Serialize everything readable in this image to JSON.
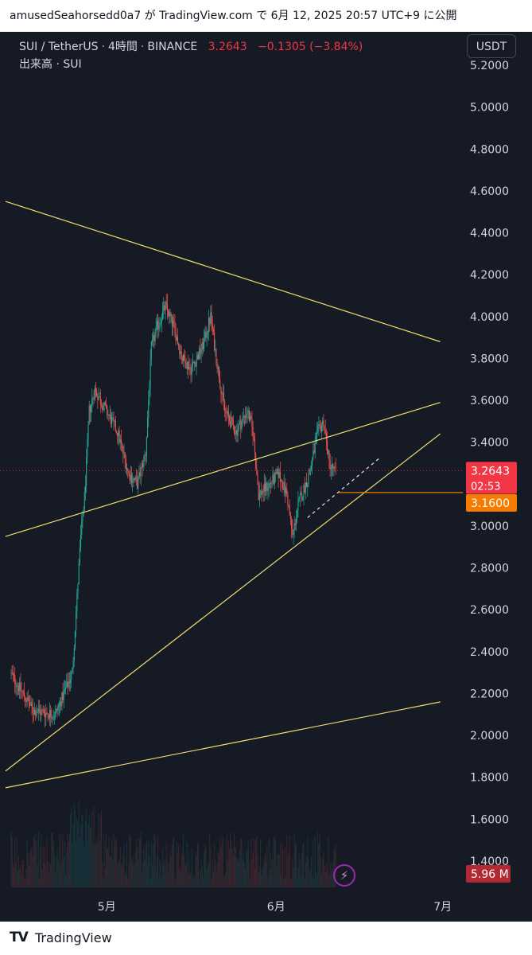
{
  "header": {
    "publish_line": "amusedSeahorsedd0a7 が TradingView.com で 6月 12, 2025 20:57 UTC+9 に公開"
  },
  "legend": {
    "symbol": "SUI / TetherUS",
    "interval": "4時間",
    "exchange": "BINANCE",
    "price": "3.2643",
    "change": "−0.1305 (−3.84%)",
    "volume_label": "出来高 · SUI"
  },
  "toolbar": {
    "currency": "USDT",
    "replay_icon": "bolt-icon"
  },
  "footer": {
    "logo": "TV",
    "brand": "TradingView"
  },
  "colors": {
    "background": "#161a25",
    "up": "#26a69a",
    "down": "#ef5350",
    "trendline": "#f0dc6e",
    "last_price": "#f23645",
    "level": "#f57c00"
  },
  "chart_data": {
    "type": "candlestick",
    "symbol": "SUI / TetherUS",
    "interval": "4h",
    "y_ticks": [
      "5.2000",
      "5.0000",
      "4.8000",
      "4.6000",
      "4.4000",
      "4.2000",
      "4.0000",
      "3.8000",
      "3.6000",
      "3.4000",
      "3.2000",
      "3.0000",
      "2.8000",
      "2.6000",
      "2.4000",
      "2.2000",
      "2.0000",
      "1.8000",
      "1.6000",
      "1.4000"
    ],
    "x_ticks": [
      "5月",
      "6月",
      "7月"
    ],
    "ylim": [
      1.4,
      5.2
    ],
    "price_path": [
      {
        "d": 0,
        "p": 2.3
      },
      {
        "d": 4,
        "p": 2.12
      },
      {
        "d": 8,
        "p": 2.1
      },
      {
        "d": 11,
        "p": 2.3
      },
      {
        "d": 12.5,
        "p": 2.95
      },
      {
        "d": 13.2,
        "p": 3.15
      },
      {
        "d": 14,
        "p": 3.55
      },
      {
        "d": 15,
        "p": 3.65
      },
      {
        "d": 17,
        "p": 3.55
      },
      {
        "d": 19,
        "p": 3.45
      },
      {
        "d": 21,
        "p": 3.25
      },
      {
        "d": 22.5,
        "p": 3.2
      },
      {
        "d": 24,
        "p": 3.35
      },
      {
        "d": 25,
        "p": 3.85
      },
      {
        "d": 26,
        "p": 3.95
      },
      {
        "d": 27.5,
        "p": 4.05
      },
      {
        "d": 29,
        "p": 3.95
      },
      {
        "d": 30.5,
        "p": 3.8
      },
      {
        "d": 32,
        "p": 3.75
      },
      {
        "d": 34,
        "p": 3.85
      },
      {
        "d": 35.5,
        "p": 4.0
      },
      {
        "d": 36.5,
        "p": 3.8
      },
      {
        "d": 38,
        "p": 3.55
      },
      {
        "d": 40,
        "p": 3.45
      },
      {
        "d": 42,
        "p": 3.55
      },
      {
        "d": 43,
        "p": 3.45
      },
      {
        "d": 44,
        "p": 3.15
      },
      {
        "d": 46,
        "p": 3.2
      },
      {
        "d": 47.5,
        "p": 3.25
      },
      {
        "d": 49,
        "p": 3.15
      },
      {
        "d": 50,
        "p": 2.95
      },
      {
        "d": 51,
        "p": 3.1
      },
      {
        "d": 53,
        "p": 3.25
      },
      {
        "d": 54.5,
        "p": 3.45
      },
      {
        "d": 55.5,
        "p": 3.5
      },
      {
        "d": 56.5,
        "p": 3.3
      },
      {
        "d": 57.5,
        "p": 3.26
      }
    ],
    "annotations": {
      "last_price": "3.2643",
      "countdown": "02:53",
      "level_price": "3.1600",
      "volume_value": "5.96 M"
    },
    "trendlines": [
      {
        "from": {
          "d": -1,
          "p": 4.55
        },
        "to": {
          "d": 76,
          "p": 3.88
        }
      },
      {
        "from": {
          "d": -1,
          "p": 2.95
        },
        "to": {
          "d": 76,
          "p": 3.59
        }
      },
      {
        "from": {
          "d": -1,
          "p": 1.83
        },
        "to": {
          "d": 76,
          "p": 3.44
        }
      },
      {
        "from": {
          "d": -1,
          "p": 1.75
        },
        "to": {
          "d": 76,
          "p": 2.16
        }
      }
    ],
    "dashed_line": {
      "from": {
        "d": 52.5,
        "p": 3.04
      },
      "to": {
        "d": 65.5,
        "p": 3.33
      }
    },
    "level_line": {
      "from_d": 58,
      "price": 3.16
    },
    "last_price_line": 3.2643,
    "grid": false
  }
}
